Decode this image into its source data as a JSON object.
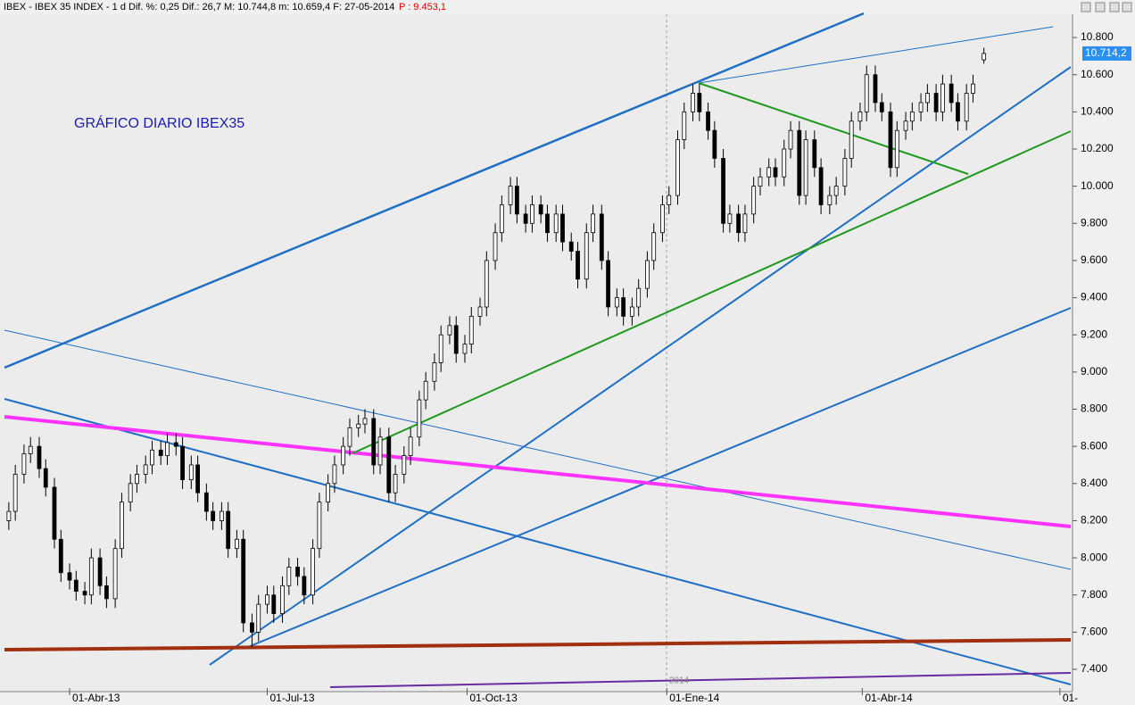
{
  "chart_data": {
    "type": "candlestick",
    "header": "IBEX - IBEX 35 INDEX - 1 d Dif. %: 0,25 Dif.: 26,7 M: 10.744,8 m: 10.659,4 F: 27-05-2014",
    "header_extra": "P : 9.453,1",
    "title": "GRÁFICO DIARIO IBEX35",
    "year_marker": "2014",
    "last_price_label": "10.714,2",
    "up_color": "#ffffff",
    "down_color": "#000000",
    "xlim": [
      "2013-03-02",
      "2014-07-06"
    ],
    "xticks": [
      {
        "value": "2013-04-01",
        "label": "01-Abr-13"
      },
      {
        "value": "2013-07-01",
        "label": "01-Jul-13"
      },
      {
        "value": "2013-10-01",
        "label": "01-Oct-13"
      },
      {
        "value": "2014-01-01",
        "label": "01-Ene-14"
      },
      {
        "value": "2014-04-01",
        "label": "01-Abr-14"
      },
      {
        "value": "2014-07-01",
        "label": "01-"
      }
    ],
    "ylim": [
      7280,
      10930
    ],
    "yticks": [
      {
        "value": 7400,
        "label": "7.400"
      },
      {
        "value": 7600,
        "label": "7.600"
      },
      {
        "value": 7800,
        "label": "7.800"
      },
      {
        "value": 8000,
        "label": "8.000"
      },
      {
        "value": 8200,
        "label": "8.200"
      },
      {
        "value": 8400,
        "label": "8.400"
      },
      {
        "value": 8600,
        "label": "8.600"
      },
      {
        "value": 8800,
        "label": "8.800"
      },
      {
        "value": 9000,
        "label": "9.000"
      },
      {
        "value": 9200,
        "label": "9.200"
      },
      {
        "value": 9400,
        "label": "9.400"
      },
      {
        "value": 9600,
        "label": "9.600"
      },
      {
        "value": 9800,
        "label": "9.800"
      },
      {
        "value": 10000,
        "label": "10.000"
      },
      {
        "value": 10200,
        "label": "10.200"
      },
      {
        "value": 10400,
        "label": "10.400"
      },
      {
        "value": 10600,
        "label": "10.600"
      },
      {
        "value": 10800,
        "label": "10.800"
      }
    ],
    "x": [
      "2013-03-04",
      "2013-03-07",
      "2013-03-11",
      "2013-03-14",
      "2013-03-18",
      "2013-03-21",
      "2013-03-25",
      "2013-03-28",
      "2013-04-01",
      "2013-04-04",
      "2013-04-08",
      "2013-04-11",
      "2013-04-15",
      "2013-04-18",
      "2013-04-22",
      "2013-04-25",
      "2013-04-29",
      "2013-05-02",
      "2013-05-06",
      "2013-05-09",
      "2013-05-13",
      "2013-05-16",
      "2013-05-20",
      "2013-05-23",
      "2013-05-27",
      "2013-05-30",
      "2013-06-03",
      "2013-06-06",
      "2013-06-10",
      "2013-06-13",
      "2013-06-17",
      "2013-06-20",
      "2013-06-24",
      "2013-06-27",
      "2013-07-01",
      "2013-07-04",
      "2013-07-08",
      "2013-07-11",
      "2013-07-15",
      "2013-07-18",
      "2013-07-22",
      "2013-07-25",
      "2013-07-29",
      "2013-08-01",
      "2013-08-05",
      "2013-08-08",
      "2013-08-12",
      "2013-08-15",
      "2013-08-19",
      "2013-08-22",
      "2013-08-26",
      "2013-08-29",
      "2013-09-02",
      "2013-09-05",
      "2013-09-09",
      "2013-09-12",
      "2013-09-16",
      "2013-09-19",
      "2013-09-23",
      "2013-09-26",
      "2013-09-30",
      "2013-10-03",
      "2013-10-07",
      "2013-10-10",
      "2013-10-14",
      "2013-10-17",
      "2013-10-21",
      "2013-10-24",
      "2013-10-28",
      "2013-10-31",
      "2013-11-04",
      "2013-11-07",
      "2013-11-11",
      "2013-11-14",
      "2013-11-18",
      "2013-11-21",
      "2013-11-25",
      "2013-11-28",
      "2013-12-02",
      "2013-12-05",
      "2013-12-09",
      "2013-12-12",
      "2013-12-16",
      "2013-12-19",
      "2013-12-23",
      "2013-12-26",
      "2013-12-30",
      "2014-01-02",
      "2014-01-06",
      "2014-01-09",
      "2014-01-13",
      "2014-01-16",
      "2014-01-20",
      "2014-01-23",
      "2014-01-27",
      "2014-01-30",
      "2014-02-03",
      "2014-02-06",
      "2014-02-10",
      "2014-02-13",
      "2014-02-17",
      "2014-02-20",
      "2014-02-24",
      "2014-02-27",
      "2014-03-03",
      "2014-03-06",
      "2014-03-10",
      "2014-03-13",
      "2014-03-17",
      "2014-03-20",
      "2014-03-24",
      "2014-03-27",
      "2014-03-31",
      "2014-04-03",
      "2014-04-07",
      "2014-04-10",
      "2014-04-14",
      "2014-04-17",
      "2014-04-21",
      "2014-04-24",
      "2014-04-28",
      "2014-05-01",
      "2014-05-05",
      "2014-05-08",
      "2014-05-12",
      "2014-05-15",
      "2014-05-19",
      "2014-05-22",
      "2014-05-27"
    ],
    "open": [
      8200,
      8250,
      8450,
      8560,
      8600,
      8480,
      8380,
      8100,
      7920,
      7880,
      7820,
      7800,
      8000,
      7850,
      7780,
      8050,
      8300,
      8400,
      8450,
      8500,
      8580,
      8550,
      8620,
      8600,
      8420,
      8500,
      8350,
      8250,
      8200,
      8250,
      8050,
      8100,
      7650,
      7600,
      7750,
      7800,
      7700,
      7850,
      7950,
      7900,
      7800,
      8050,
      8300,
      8400,
      8500,
      8600,
      8700,
      8720,
      8750,
      8500,
      8650,
      8350,
      8450,
      8550,
      8650,
      8850,
      8950,
      9050,
      9200,
      9250,
      9100,
      9150,
      9300,
      9350,
      9600,
      9750,
      9900,
      10000,
      9850,
      9800,
      9900,
      9850,
      9750,
      9850,
      9700,
      9650,
      9500,
      9750,
      9850,
      9600,
      9350,
      9400,
      9300,
      9350,
      9450,
      9600,
      9750,
      9900,
      9950,
      10250,
      10400,
      10500,
      10400,
      10300,
      10150,
      9800,
      9850,
      9750,
      9850,
      10000,
      10050,
      10100,
      10050,
      10200,
      10300,
      9950,
      10250,
      10100,
      9900,
      9950,
      10000,
      10150,
      10350,
      10400,
      10600,
      10450,
      10400,
      10100,
      10300,
      10350,
      10400,
      10450,
      10500,
      10400,
      10550,
      10450,
      10350,
      10500,
      10680
    ],
    "high": [
      8300,
      8500,
      8610,
      8650,
      8650,
      8530,
      8430,
      8150,
      7970,
      7930,
      7870,
      8050,
      8050,
      7900,
      8100,
      8350,
      8450,
      8500,
      8550,
      8630,
      8630,
      8670,
      8670,
      8650,
      8550,
      8550,
      8400,
      8300,
      8300,
      8300,
      8150,
      8150,
      7700,
      7800,
      7850,
      7850,
      7900,
      8000,
      8000,
      7950,
      8100,
      8350,
      8450,
      8550,
      8650,
      8750,
      8770,
      8800,
      8800,
      8700,
      8700,
      8500,
      8600,
      8700,
      8900,
      9000,
      9100,
      9250,
      9300,
      9300,
      9200,
      9350,
      9400,
      9650,
      9800,
      9950,
      10050,
      10050,
      9900,
      9950,
      9950,
      9900,
      9900,
      9900,
      9750,
      9700,
      9800,
      9900,
      9900,
      9650,
      9450,
      9450,
      9400,
      9500,
      9650,
      9800,
      9950,
      10000,
      10300,
      10450,
      10550,
      10550,
      10450,
      10350,
      10200,
      9900,
      9900,
      9900,
      10050,
      10100,
      10150,
      10150,
      10250,
      10350,
      10350,
      10300,
      10300,
      10150,
      10000,
      10050,
      10200,
      10400,
      10450,
      10650,
      10650,
      10500,
      10450,
      10350,
      10400,
      10450,
      10500,
      10550,
      10550,
      10600,
      10600,
      10500,
      10550,
      10600,
      10744.8
    ],
    "low": [
      8150,
      8200,
      8400,
      8510,
      8430,
      8330,
      8050,
      7870,
      7830,
      7770,
      7750,
      7750,
      7800,
      7730,
      7730,
      8000,
      8250,
      8350,
      8400,
      8450,
      8500,
      8500,
      8550,
      8370,
      8370,
      8300,
      8200,
      8150,
      8150,
      8000,
      8000,
      7600,
      7520,
      7550,
      7700,
      7650,
      7650,
      7800,
      7850,
      7750,
      7750,
      8000,
      8250,
      8350,
      8450,
      8550,
      8650,
      8670,
      8450,
      8450,
      8300,
      8300,
      8400,
      8500,
      8600,
      8800,
      8900,
      9000,
      9150,
      9050,
      9050,
      9100,
      9250,
      9300,
      9550,
      9700,
      9850,
      9800,
      9750,
      9750,
      9800,
      9700,
      9700,
      9650,
      9600,
      9450,
      9450,
      9700,
      9550,
      9300,
      9300,
      9250,
      9250,
      9300,
      9400,
      9550,
      9700,
      9850,
      9900,
      10200,
      10350,
      10350,
      10250,
      10100,
      9750,
      9750,
      9700,
      9700,
      9800,
      9950,
      10000,
      10000,
      10000,
      10150,
      9900,
      9900,
      10050,
      9850,
      9850,
      9900,
      9950,
      10100,
      10300,
      10350,
      10400,
      10350,
      10050,
      10050,
      10250,
      10300,
      10350,
      10400,
      10350,
      10350,
      10400,
      10300,
      10300,
      10450,
      10659.4
    ],
    "close": [
      8250,
      8450,
      8560,
      8600,
      8480,
      8380,
      8100,
      7920,
      7880,
      7820,
      7800,
      8000,
      7850,
      7780,
      8050,
      8300,
      8400,
      8450,
      8500,
      8580,
      8550,
      8620,
      8600,
      8420,
      8500,
      8350,
      8250,
      8200,
      8250,
      8050,
      8100,
      7650,
      7600,
      7750,
      7800,
      7700,
      7850,
      7950,
      7900,
      7800,
      8050,
      8300,
      8400,
      8500,
      8600,
      8700,
      8720,
      8750,
      8500,
      8650,
      8350,
      8450,
      8550,
      8650,
      8850,
      8950,
      9050,
      9200,
      9250,
      9100,
      9150,
      9300,
      9350,
      9600,
      9750,
      9900,
      10000,
      9850,
      9800,
      9900,
      9850,
      9750,
      9850,
      9700,
      9650,
      9500,
      9750,
      9850,
      9600,
      9350,
      9400,
      9300,
      9350,
      9450,
      9600,
      9750,
      9900,
      9950,
      10250,
      10400,
      10500,
      10400,
      10300,
      10150,
      9800,
      9850,
      9750,
      9850,
      10000,
      10050,
      10100,
      10050,
      10200,
      10300,
      9950,
      10250,
      10100,
      9900,
      9950,
      10000,
      10150,
      10350,
      10400,
      10600,
      10450,
      10400,
      10100,
      10300,
      10350,
      10400,
      10450,
      10500,
      10400,
      10550,
      10450,
      10350,
      10500,
      10550,
      10714.2
    ]
  }
}
